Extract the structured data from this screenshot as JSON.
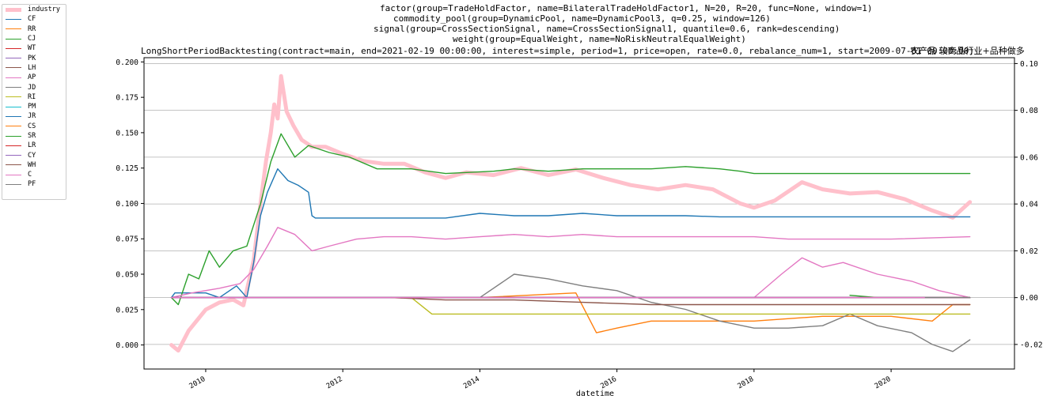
{
  "chart_data": {
    "type": "line",
    "title_lines": [
      "factor(group=TradeHoldFactor, name=BilateralTradeHoldFactor1, N=20, R=20, func=None, window=1)",
      "commodity_pool(group=DynamicPool, name=DynamicPool3, q=0.25, window=126)",
      "signal(group=CrossSectionSignal, name=CrossSectionSignal1, quantile=0.6, rank=descending)",
      "weight(group=EqualWeight, name=NoRiskNeutralEqualWeight)",
      "LongShortPeriodBacktesting(contract=main, end=2021-02-19 00:00:00, interest=simple, period=1, price=open, rate=0.0, rebalance_num=1, start=2009-07-01 00:00:00)"
    ],
    "subtitle_right": "农产品 软商品行业+品种做多",
    "xlabel": "datetime",
    "x_ticks": [
      "2010",
      "2012",
      "2014",
      "2016",
      "2018",
      "2020"
    ],
    "xlim": [
      2009.1,
      2021.8
    ],
    "y_left": {
      "ticks": [
        "0.000",
        "0.025",
        "0.050",
        "0.075",
        "0.100",
        "0.125",
        "0.150",
        "0.175",
        "0.200"
      ],
      "lim": [
        -0.017,
        0.203
      ]
    },
    "y_right": {
      "ticks": [
        "-0.02",
        "0.00",
        "0.02",
        "0.04",
        "0.06",
        "0.08",
        "0.10"
      ],
      "lim": [
        -0.0305,
        0.1025
      ]
    },
    "grid": "right-axis horizontal",
    "legend_position": "outside-left",
    "series": [
      {
        "name": "industry",
        "axis": "left",
        "color": "#FFC0CB",
        "width": 5,
        "points": [
          [
            2009.5,
            0.0
          ],
          [
            2009.6,
            -0.004
          ],
          [
            2009.75,
            0.01
          ],
          [
            2010.0,
            0.025
          ],
          [
            2010.2,
            0.03
          ],
          [
            2010.4,
            0.032
          ],
          [
            2010.55,
            0.028
          ],
          [
            2010.7,
            0.06
          ],
          [
            2010.8,
            0.1
          ],
          [
            2010.88,
            0.13
          ],
          [
            2010.95,
            0.15
          ],
          [
            2011.0,
            0.17
          ],
          [
            2011.05,
            0.16
          ],
          [
            2011.1,
            0.19
          ],
          [
            2011.18,
            0.165
          ],
          [
            2011.28,
            0.155
          ],
          [
            2011.4,
            0.145
          ],
          [
            2011.55,
            0.14
          ],
          [
            2011.75,
            0.14
          ],
          [
            2012.0,
            0.135
          ],
          [
            2012.3,
            0.13
          ],
          [
            2012.6,
            0.128
          ],
          [
            2012.9,
            0.128
          ],
          [
            2013.2,
            0.122
          ],
          [
            2013.5,
            0.118
          ],
          [
            2013.8,
            0.122
          ],
          [
            2014.2,
            0.12
          ],
          [
            2014.6,
            0.125
          ],
          [
            2015.0,
            0.12
          ],
          [
            2015.4,
            0.124
          ],
          [
            2015.8,
            0.118
          ],
          [
            2016.2,
            0.113
          ],
          [
            2016.6,
            0.11
          ],
          [
            2017.0,
            0.113
          ],
          [
            2017.4,
            0.11
          ],
          [
            2017.8,
            0.1
          ],
          [
            2018.0,
            0.097
          ],
          [
            2018.3,
            0.102
          ],
          [
            2018.7,
            0.115
          ],
          [
            2019.0,
            0.11
          ],
          [
            2019.4,
            0.107
          ],
          [
            2019.8,
            0.108
          ],
          [
            2020.2,
            0.103
          ],
          [
            2020.6,
            0.095
          ],
          [
            2020.9,
            0.09
          ],
          [
            2021.15,
            0.101
          ]
        ]
      },
      {
        "name": "CF",
        "axis": "right",
        "color": "#1f77b4",
        "width": 1.4,
        "points": [
          [
            2009.5,
            0.0
          ],
          [
            2009.55,
            0.002
          ],
          [
            2010.0,
            0.002
          ],
          [
            2010.2,
            0.0
          ],
          [
            2010.45,
            0.005
          ],
          [
            2010.6,
            0.0
          ],
          [
            2010.7,
            0.015
          ],
          [
            2010.8,
            0.035
          ],
          [
            2010.9,
            0.045
          ],
          [
            2011.05,
            0.055
          ],
          [
            2011.2,
            0.05
          ],
          [
            2011.35,
            0.048
          ],
          [
            2011.5,
            0.045
          ],
          [
            2011.55,
            0.035
          ],
          [
            2011.6,
            0.034
          ],
          [
            2013.5,
            0.034
          ],
          [
            2014.0,
            0.036
          ],
          [
            2014.5,
            0.035
          ],
          [
            2015.0,
            0.035
          ],
          [
            2015.5,
            0.036
          ],
          [
            2016.0,
            0.035
          ],
          [
            2016.5,
            0.035
          ],
          [
            2017.0,
            0.035
          ],
          [
            2017.5,
            0.0345
          ],
          [
            2018.0,
            0.0345
          ],
          [
            2021.15,
            0.0345
          ]
        ]
      },
      {
        "name": "RR",
        "axis": "right",
        "color": "#ff7f0e",
        "width": 1.4,
        "points": [
          [
            2012.85,
            0.0
          ],
          [
            2014.0,
            0.0
          ],
          [
            2015.4,
            0.002
          ],
          [
            2015.7,
            -0.015
          ],
          [
            2016.0,
            -0.013
          ],
          [
            2016.5,
            -0.01
          ],
          [
            2017.0,
            -0.01
          ],
          [
            2018.0,
            -0.01
          ],
          [
            2019.0,
            -0.008
          ],
          [
            2020.0,
            -0.008
          ],
          [
            2020.6,
            -0.01
          ],
          [
            2020.9,
            -0.003
          ],
          [
            2021.15,
            -0.003
          ]
        ]
      },
      {
        "name": "CJ",
        "axis": "right",
        "color": "#2ca02c",
        "width": 1.4,
        "points": [
          [
            2009.5,
            0.0
          ],
          [
            2009.6,
            -0.003
          ],
          [
            2009.75,
            0.01
          ],
          [
            2009.9,
            0.008
          ],
          [
            2010.05,
            0.02
          ],
          [
            2010.2,
            0.013
          ],
          [
            2010.4,
            0.02
          ],
          [
            2010.6,
            0.022
          ],
          [
            2010.8,
            0.04
          ],
          [
            2010.95,
            0.058
          ],
          [
            2011.1,
            0.07
          ],
          [
            2011.3,
            0.06
          ],
          [
            2011.5,
            0.065
          ],
          [
            2011.8,
            0.062
          ],
          [
            2012.1,
            0.06
          ],
          [
            2012.5,
            0.055
          ],
          [
            2013.0,
            0.055
          ],
          [
            2013.5,
            0.053
          ],
          [
            2014.2,
            0.054
          ],
          [
            2014.5,
            0.055
          ],
          [
            2015.0,
            0.054
          ],
          [
            2015.5,
            0.055
          ],
          [
            2016.0,
            0.055
          ],
          [
            2016.5,
            0.055
          ],
          [
            2017.0,
            0.056
          ],
          [
            2017.5,
            0.055
          ],
          [
            2017.8,
            0.054
          ],
          [
            2018.0,
            0.053
          ],
          [
            2021.15,
            0.053
          ]
        ]
      },
      {
        "name": "WT",
        "axis": "right",
        "color": "#d62728",
        "width": 1.4,
        "points": [
          [
            2009.5,
            0.0
          ],
          [
            2021.15,
            0.0
          ]
        ]
      },
      {
        "name": "PK",
        "axis": "right",
        "color": "#9467bd",
        "width": 1.4,
        "points": [
          [
            2009.5,
            0.0
          ],
          [
            2021.15,
            0.0
          ]
        ]
      },
      {
        "name": "LH",
        "axis": "right",
        "color": "#8c564b",
        "width": 1.4,
        "points": [
          [
            2009.5,
            0.0
          ],
          [
            2021.15,
            0.0
          ]
        ]
      },
      {
        "name": "AP",
        "axis": "right",
        "color": "#e377c2",
        "width": 1.4,
        "points": [
          [
            2009.5,
            0.0
          ],
          [
            2009.8,
            0.002
          ],
          [
            2010.2,
            0.004
          ],
          [
            2010.5,
            0.006
          ],
          [
            2010.7,
            0.012
          ],
          [
            2010.9,
            0.022
          ],
          [
            2011.05,
            0.03
          ],
          [
            2011.3,
            0.027
          ],
          [
            2011.55,
            0.02
          ],
          [
            2011.8,
            0.022
          ],
          [
            2012.2,
            0.025
          ],
          [
            2012.6,
            0.026
          ],
          [
            2013.0,
            0.026
          ],
          [
            2013.5,
            0.025
          ],
          [
            2014.0,
            0.026
          ],
          [
            2014.5,
            0.027
          ],
          [
            2015.0,
            0.026
          ],
          [
            2015.5,
            0.027
          ],
          [
            2016.0,
            0.026
          ],
          [
            2018.0,
            0.026
          ],
          [
            2018.5,
            0.025
          ],
          [
            2020.0,
            0.025
          ],
          [
            2021.15,
            0.026
          ],
          [
            null,
            null
          ],
          [
            2018.0,
            0.0
          ],
          [
            2018.4,
            0.01
          ],
          [
            2018.7,
            0.017
          ],
          [
            2019.0,
            0.013
          ],
          [
            2019.3,
            0.015
          ],
          [
            2019.8,
            0.01
          ],
          [
            2020.3,
            0.007
          ],
          [
            2020.7,
            0.003
          ],
          [
            2021.15,
            0.0
          ]
        ]
      },
      {
        "name": "JD",
        "axis": "right",
        "color": "#7f7f7f",
        "width": 1.4,
        "points": [
          [
            2013.0,
            0.0
          ],
          [
            2014.0,
            0.0
          ],
          [
            2014.5,
            0.01
          ],
          [
            2015.0,
            0.008
          ],
          [
            2015.5,
            0.005
          ],
          [
            2016.0,
            0.003
          ],
          [
            2016.5,
            -0.002
          ],
          [
            2017.0,
            -0.005
          ],
          [
            2017.5,
            -0.01
          ],
          [
            2018.0,
            -0.013
          ],
          [
            2018.5,
            -0.013
          ],
          [
            2019.0,
            -0.012
          ],
          [
            2019.4,
            -0.007
          ],
          [
            2019.8,
            -0.012
          ],
          [
            2020.3,
            -0.015
          ],
          [
            2020.6,
            -0.02
          ],
          [
            2020.9,
            -0.023
          ],
          [
            2021.15,
            -0.018
          ]
        ]
      },
      {
        "name": "RI",
        "axis": "right",
        "color": "#bcbd22",
        "width": 1.4,
        "points": [
          [
            2012.8,
            0.0
          ],
          [
            2013.0,
            0.0
          ],
          [
            2013.3,
            -0.007
          ],
          [
            2021.15,
            -0.007
          ]
        ]
      },
      {
        "name": "PM",
        "axis": "right",
        "color": "#17becf",
        "width": 1.4,
        "points": [
          [
            2009.5,
            0.0
          ],
          [
            2021.15,
            0.0
          ]
        ]
      },
      {
        "name": "JR",
        "axis": "right",
        "color": "#1f77b4",
        "width": 1.4,
        "points": [
          [
            2009.5,
            0.0
          ],
          [
            2021.15,
            0.0
          ]
        ]
      },
      {
        "name": "CS",
        "axis": "right",
        "color": "#ff7f0e",
        "width": 1.4,
        "points": [
          [
            2020.7,
            0.0
          ],
          [
            2021.15,
            0.0
          ]
        ]
      },
      {
        "name": "SR",
        "axis": "right",
        "color": "#2ca02c",
        "width": 1.4,
        "points": [
          [
            2019.4,
            0.001
          ],
          [
            2019.8,
            0.0
          ],
          [
            2021.15,
            0.0
          ]
        ]
      },
      {
        "name": "LR",
        "axis": "right",
        "color": "#d62728",
        "width": 1.4,
        "points": [
          [
            2009.5,
            0.0
          ],
          [
            2021.15,
            0.0
          ]
        ]
      },
      {
        "name": "CY",
        "axis": "right",
        "color": "#9467bd",
        "width": 1.4,
        "points": [
          [
            2009.5,
            0.0
          ],
          [
            2021.15,
            0.0
          ]
        ]
      },
      {
        "name": "WH",
        "axis": "right",
        "color": "#8c564b",
        "width": 1.4,
        "points": [
          [
            2012.7,
            0.0
          ],
          [
            2013.5,
            -0.001
          ],
          [
            2014.5,
            -0.001
          ],
          [
            2015.5,
            -0.002
          ],
          [
            2016.5,
            -0.003
          ],
          [
            2017.5,
            -0.003
          ],
          [
            2021.15,
            -0.003
          ]
        ]
      },
      {
        "name": "C",
        "axis": "right",
        "color": "#e377c2",
        "width": 1.4,
        "points": [
          [
            2009.5,
            0.0
          ],
          [
            2021.15,
            0.0
          ]
        ]
      },
      {
        "name": "PF",
        "axis": "right",
        "color": "#7f7f7f",
        "width": 1.4,
        "points": [
          [
            2020.5,
            0.0
          ],
          [
            2021.15,
            0.0
          ]
        ]
      }
    ]
  }
}
